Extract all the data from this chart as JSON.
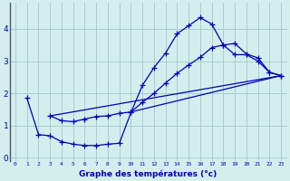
{
  "xlabel": "Graphe des températures (°c)",
  "bg_color": "#d4eeee",
  "line_color": "#0000bb",
  "grid_color": "#aacccc",
  "spine_color": "#555566",
  "xlim": [
    -0.5,
    23.5
  ],
  "ylim": [
    -0.1,
    4.8
  ],
  "xticks": [
    0,
    1,
    2,
    3,
    4,
    5,
    6,
    7,
    8,
    9,
    10,
    11,
    12,
    13,
    14,
    15,
    16,
    17,
    18,
    19,
    20,
    21,
    22,
    23
  ],
  "yticks": [
    0,
    1,
    2,
    3,
    4
  ],
  "curve1_x": [
    1,
    2,
    3,
    4,
    5,
    6,
    7,
    8,
    9,
    10,
    11,
    12,
    13,
    14,
    15,
    16,
    17,
    18,
    19,
    20,
    21,
    22,
    23
  ],
  "curve1_y": [
    1.85,
    0.72,
    0.68,
    0.5,
    0.42,
    0.38,
    0.38,
    0.42,
    0.45,
    1.4,
    2.25,
    2.8,
    3.25,
    3.85,
    4.1,
    4.35,
    4.15,
    3.5,
    3.2,
    3.2,
    3.0,
    2.65,
    2.55
  ],
  "curve2_x": [
    3,
    4,
    5,
    6,
    7,
    8,
    9,
    10,
    11,
    12,
    13,
    14,
    15,
    16,
    17,
    18,
    19,
    20,
    21,
    22,
    23
  ],
  "curve2_y": [
    1.3,
    1.15,
    1.12,
    1.2,
    1.28,
    1.3,
    1.38,
    1.42,
    1.72,
    2.0,
    2.32,
    2.62,
    2.88,
    3.12,
    3.42,
    3.5,
    3.55,
    3.22,
    3.1,
    2.65,
    2.55
  ],
  "curve3_x": [
    3,
    23
  ],
  "curve3_y": [
    1.3,
    2.55
  ],
  "curve4_x": [
    10,
    23
  ],
  "curve4_y": [
    1.42,
    2.55
  ],
  "marker_size": 4
}
